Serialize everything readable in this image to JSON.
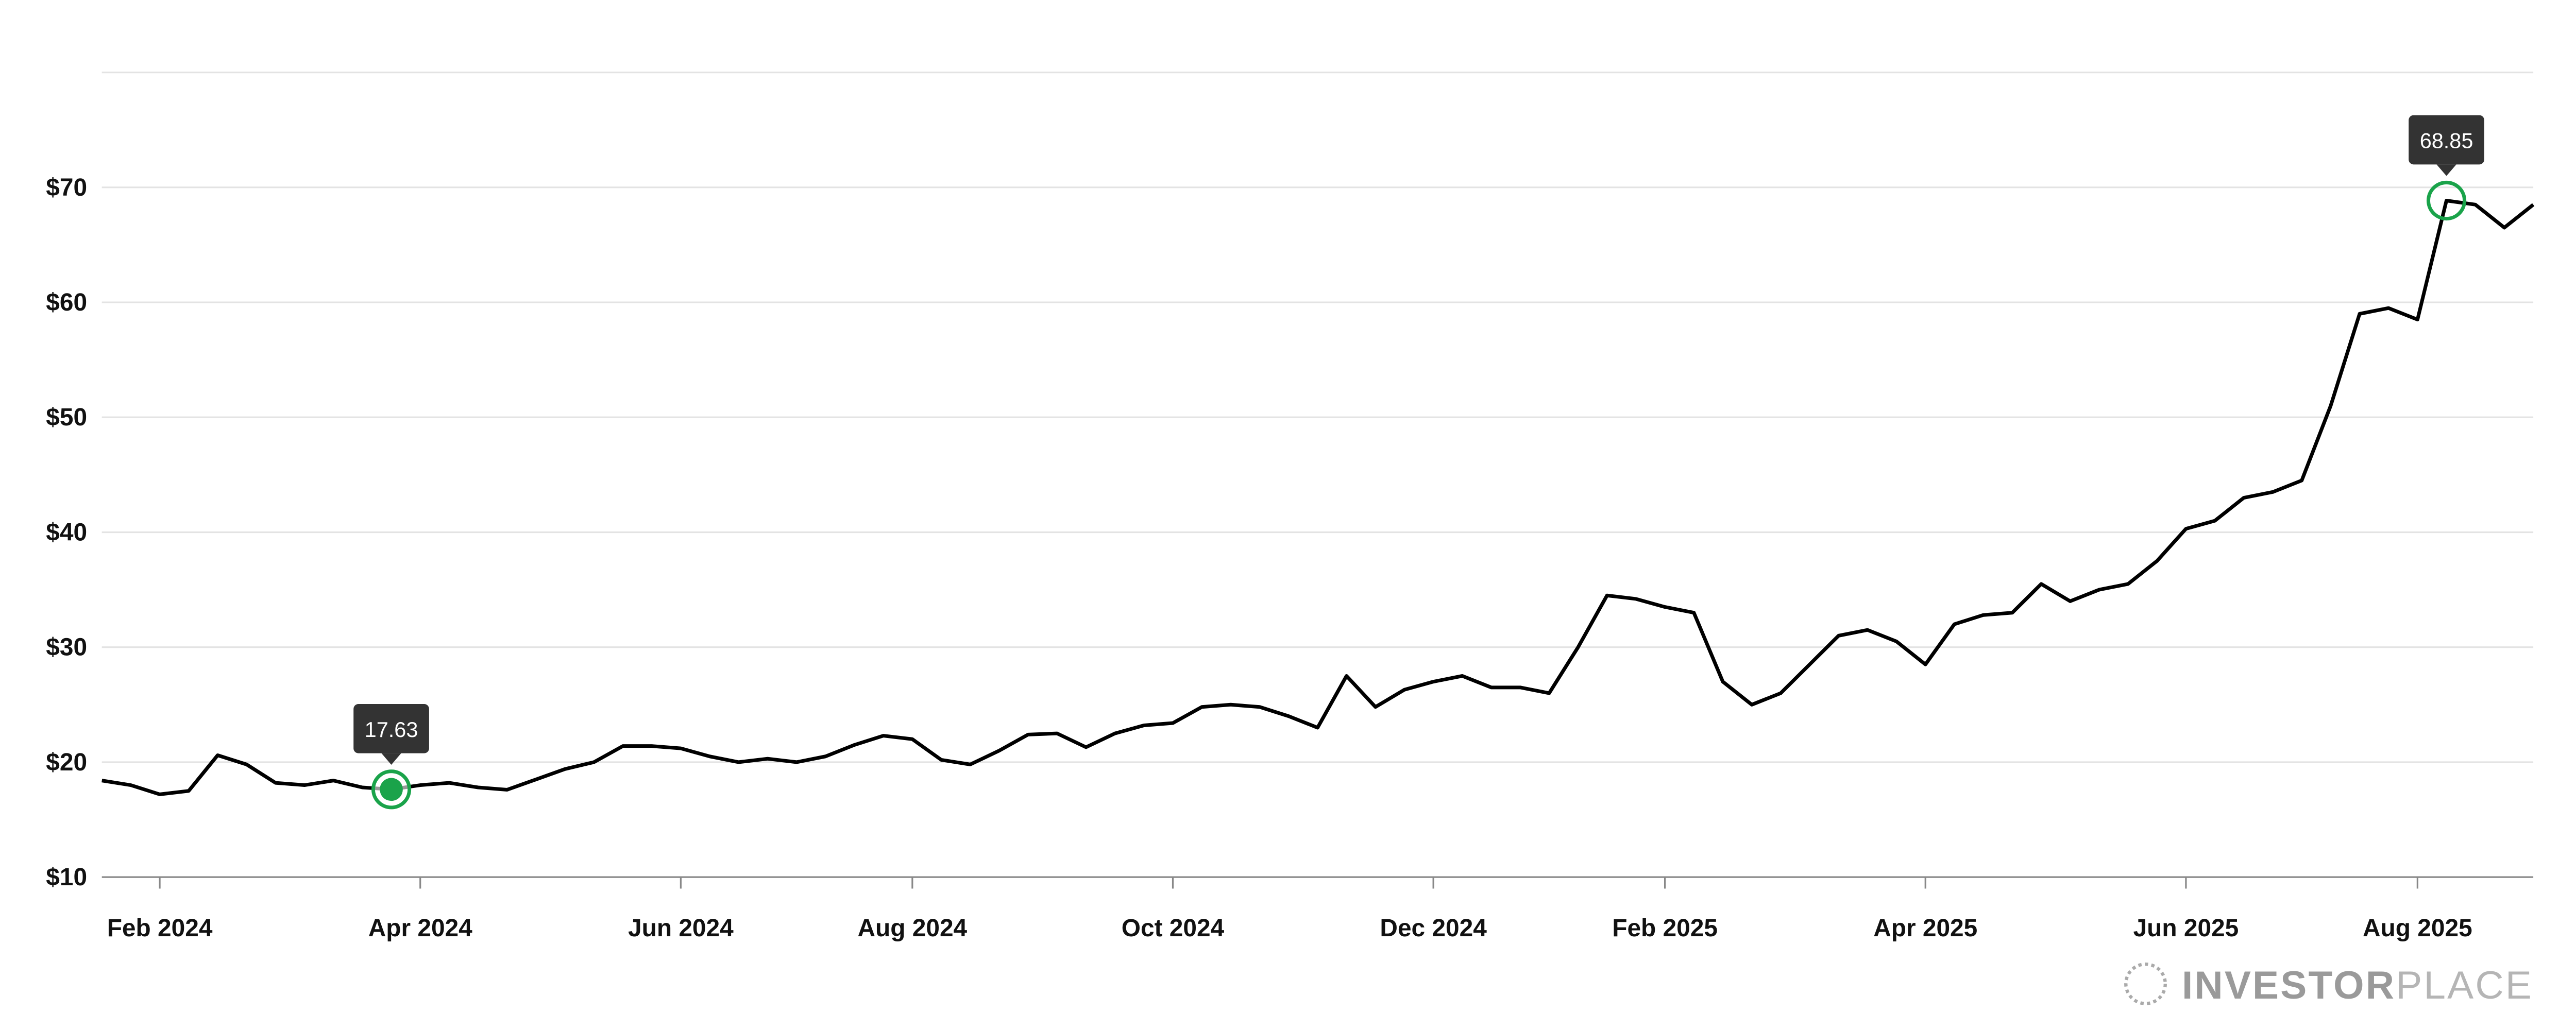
{
  "chart_data": {
    "type": "line",
    "categories": [
      null,
      null,
      "Feb 2024",
      null,
      null,
      null,
      null,
      null,
      null,
      null,
      null,
      "Apr 2024",
      null,
      null,
      null,
      null,
      null,
      null,
      null,
      null,
      "Jun 2024",
      null,
      null,
      null,
      null,
      null,
      null,
      null,
      "Aug 2024",
      null,
      null,
      null,
      null,
      null,
      null,
      null,
      null,
      "Oct 2024",
      null,
      null,
      null,
      null,
      null,
      null,
      null,
      null,
      "Dec 2024",
      null,
      null,
      null,
      null,
      null,
      null,
      null,
      "Feb 2025",
      null,
      null,
      null,
      null,
      null,
      null,
      null,
      null,
      "Apr 2025",
      null,
      null,
      null,
      null,
      null,
      null,
      null,
      null,
      "Jun 2025",
      null,
      null,
      null,
      null,
      null,
      null,
      null,
      "Aug 2025",
      null,
      null,
      null,
      null
    ],
    "series": [
      {
        "color": "#000000",
        "values": [
          18.4,
          18.0,
          17.2,
          17.5,
          20.6,
          19.8,
          18.2,
          18.0,
          18.4,
          17.8,
          17.63,
          18.0,
          18.2,
          17.8,
          17.6,
          18.5,
          19.4,
          20.0,
          21.4,
          21.4,
          21.2,
          20.5,
          20.0,
          20.3,
          20.0,
          20.5,
          21.5,
          22.3,
          22.0,
          20.2,
          19.8,
          21.0,
          22.4,
          22.5,
          21.3,
          22.5,
          23.2,
          23.4,
          24.8,
          25.0,
          24.8,
          24.0,
          23.0,
          27.5,
          24.8,
          26.3,
          27.0,
          27.5,
          26.5,
          26.5,
          26.0,
          30.0,
          34.5,
          34.2,
          33.5,
          33.0,
          27.0,
          25.0,
          26.0,
          28.5,
          31.0,
          31.5,
          30.5,
          28.5,
          32.0,
          32.8,
          33.0,
          35.5,
          34.0,
          35.0,
          35.5,
          37.5,
          40.3,
          41.0,
          43.0,
          43.5,
          44.5,
          51.0,
          59.0,
          59.5,
          58.5,
          68.85,
          68.5,
          66.5,
          68.5
        ]
      }
    ],
    "callouts": [
      17.63,
      68.85
    ],
    "callout_color": "#1aa34a",
    "ylim": [
      10,
      80
    ],
    "yticks": [
      {
        "value": 10,
        "label": "$10"
      },
      {
        "value": 20,
        "label": "$20"
      },
      {
        "value": 30,
        "label": "$30"
      },
      {
        "value": 40,
        "label": "$40"
      },
      {
        "value": 50,
        "label": "$50"
      },
      {
        "value": 60,
        "label": "$60"
      },
      {
        "value": 70,
        "label": "$70"
      }
    ],
    "grid": true,
    "logo": {
      "bold": "INVESTOR",
      "light": "PLACE"
    }
  }
}
